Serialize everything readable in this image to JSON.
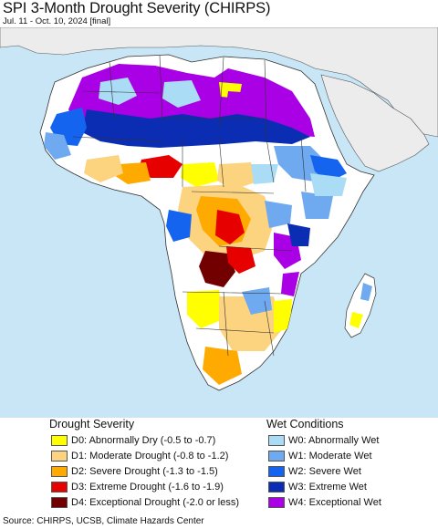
{
  "title": "SPI 3-Month Drought Severity (CHIRPS)",
  "subtitle": "Jul. 11 - Oct. 10, 2024 [final]",
  "legend": {
    "drought_heading": "Drought Severity",
    "wet_heading": "Wet Conditions",
    "drought": [
      {
        "code": "D0",
        "label": "D0: Abnormally Dry (-0.5 to -0.7)",
        "color": "#ffff00"
      },
      {
        "code": "D1",
        "label": "D1: Moderate Drought (-0.8 to -1.2)",
        "color": "#fcd37f"
      },
      {
        "code": "D2",
        "label": "D2: Severe Drought (-1.3 to -1.5)",
        "color": "#ffaa00"
      },
      {
        "code": "D3",
        "label": "D3: Extreme Drought (-1.6 to -1.9)",
        "color": "#e60000"
      },
      {
        "code": "D4",
        "label": "D4: Exceptional Drought (-2.0 or less)",
        "color": "#730000"
      }
    ],
    "wet": [
      {
        "code": "W0",
        "label": "W0: Abnormally Wet",
        "color": "#aadcf5"
      },
      {
        "code": "W1",
        "label": "W1: Moderate Wet",
        "color": "#6fa9f0"
      },
      {
        "code": "W2",
        "label": "W2: Severe Wet",
        "color": "#1464f0"
      },
      {
        "code": "W3",
        "label": "W3: Extreme Wet",
        "color": "#0a2db4"
      },
      {
        "code": "W4",
        "label": "W4: Exceptional Wet",
        "color": "#aa00e6"
      }
    ]
  },
  "source": "Source: CHIRPS, UCSB, Climate Hazards Center",
  "colors": {
    "ocean": "#c8e6f5",
    "land": "#ffffff",
    "no_data_land": "#ececec",
    "border": "#333333"
  }
}
